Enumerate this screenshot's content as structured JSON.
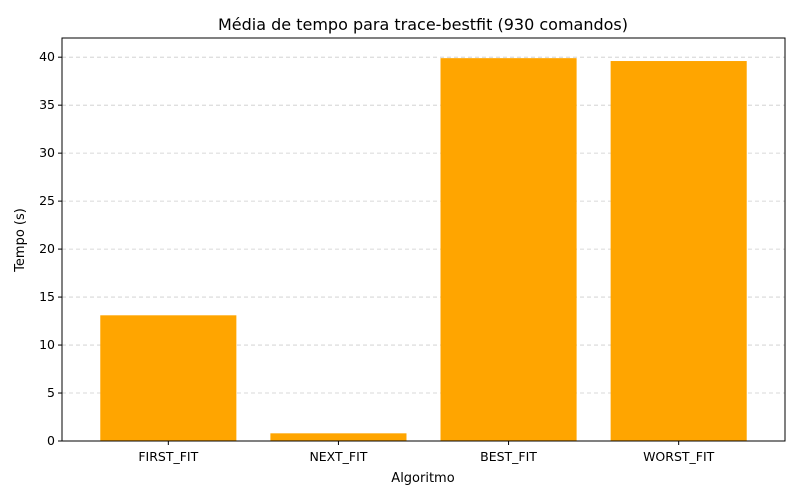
{
  "chart_data": {
    "type": "bar",
    "title": "Média de tempo para trace-bestfit (930 comandos)",
    "xlabel": "Algoritmo",
    "ylabel": "Tempo (s)",
    "categories": [
      "FIRST_FIT",
      "NEXT_FIT",
      "BEST_FIT",
      "WORST_FIT"
    ],
    "values": [
      13.1,
      0.8,
      39.9,
      39.6
    ],
    "ylim": [
      0,
      42
    ],
    "yticks": [
      0,
      5,
      10,
      15,
      20,
      25,
      30,
      35,
      40
    ],
    "grid": "y-dashed",
    "bar_color": "#ffa500"
  }
}
